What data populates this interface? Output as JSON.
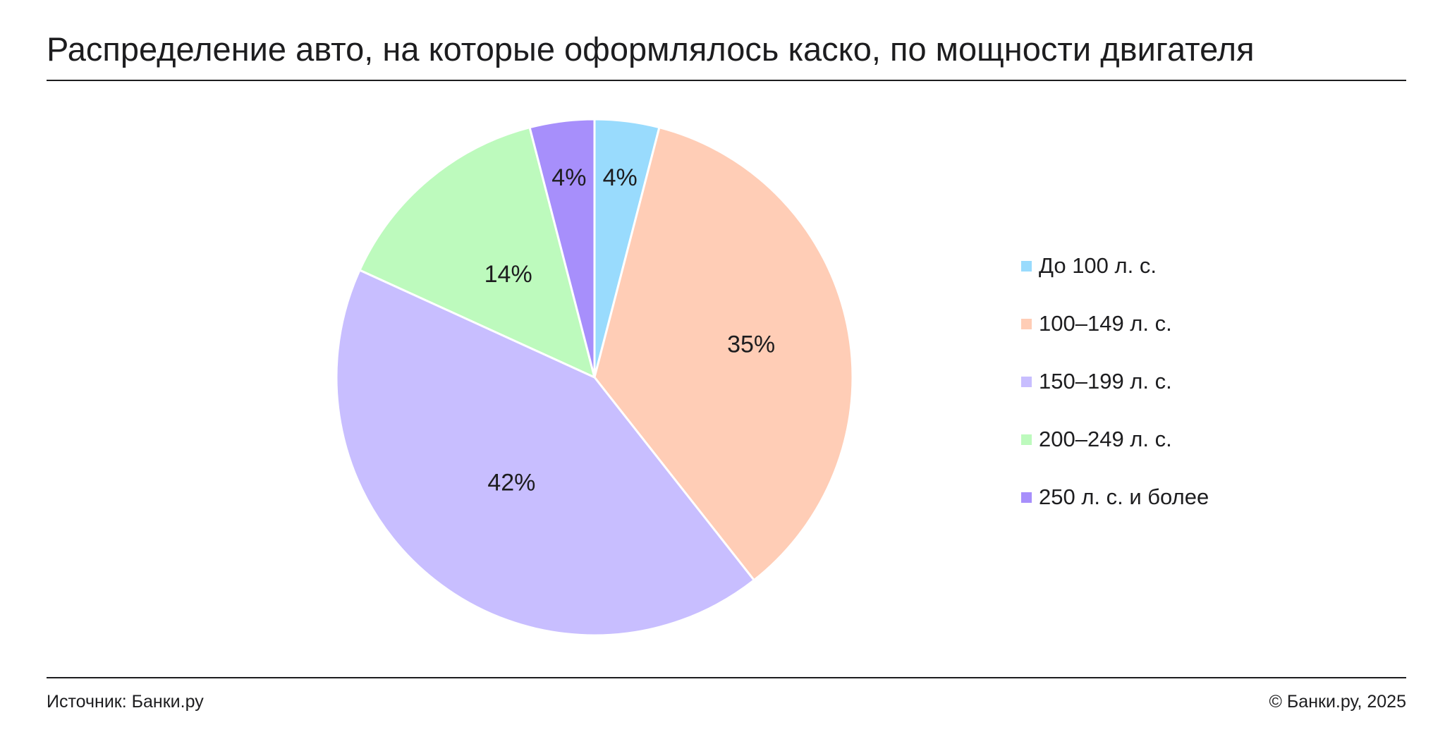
{
  "header": {
    "title": "Распределение авто, на которые оформлялось каско, по мощности двигателя"
  },
  "footer": {
    "source": "Источник: Банки.ру",
    "copyright": "© Банки.ру, 2025"
  },
  "chart_data": {
    "type": "pie",
    "title": "Распределение авто, на которые оформлялось каско, по мощности двигателя",
    "start_angle_deg": 0,
    "direction": "clockwise",
    "legend_position": "right",
    "slices": [
      {
        "label": "До 100 л. с.",
        "value": 4,
        "display": "4%",
        "color": "#99DBFD"
      },
      {
        "label": "100–149 л. с.",
        "value": 35,
        "display": "35%",
        "color": "#FFCDB6"
      },
      {
        "label": "150–199 л. с.",
        "value": 42,
        "display": "42%",
        "color": "#C8BEFF"
      },
      {
        "label": "200–249 л. с.",
        "value": 14,
        "display": "14%",
        "color": "#BDFABD"
      },
      {
        "label": "250 л. с.  и более",
        "value": 4,
        "display": "4%",
        "color": "#A78FFB"
      }
    ]
  }
}
